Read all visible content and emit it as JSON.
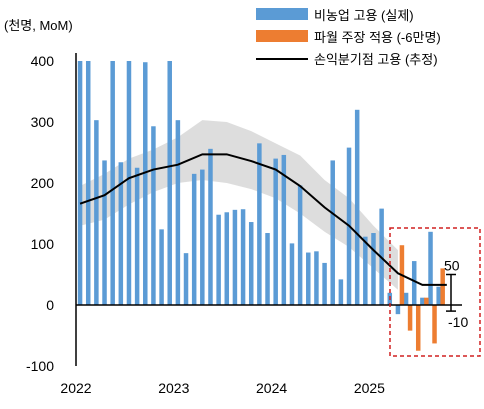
{
  "chart_data": {
    "type": "bar",
    "unit_label": "(천명, MoM)",
    "ylim": [
      -100,
      400
    ],
    "y_ticks": [
      "400",
      "300",
      "200",
      "100",
      "0",
      "-100"
    ],
    "x_ticks": [
      "2022",
      "2023",
      "2024",
      "2025"
    ],
    "series": [
      {
        "name": "비농업 고용 (실제)",
        "kind": "bar",
        "color": "#5B9BD5",
        "x": [
          "2022-01",
          "2022-02",
          "2022-03",
          "2022-04",
          "2022-05",
          "2022-06",
          "2022-07",
          "2022-08",
          "2022-09",
          "2022-10",
          "2022-11",
          "2022-12",
          "2023-01",
          "2023-02",
          "2023-03",
          "2023-04",
          "2023-05",
          "2023-06",
          "2023-07",
          "2023-08",
          "2023-09",
          "2023-10",
          "2023-11",
          "2023-12",
          "2024-01",
          "2024-02",
          "2024-03",
          "2024-04",
          "2024-05",
          "2024-06",
          "2024-07",
          "2024-08",
          "2024-09",
          "2024-10",
          "2024-11",
          "2024-12",
          "2025-01",
          "2025-02",
          "2025-03",
          "2025-04",
          "2025-05",
          "2025-06",
          "2025-07",
          "2025-08",
          "2025-09"
        ],
        "values": [
          400,
          400,
          303,
          237,
          400,
          234,
          400,
          225,
          398,
          293,
          124,
          400,
          303,
          85,
          215,
          222,
          256,
          148,
          152,
          156,
          157,
          136,
          265,
          118,
          240,
          246,
          101,
          196,
          86,
          88,
          69,
          237,
          42,
          258,
          320,
          112,
          118,
          158,
          20,
          -15,
          20,
          72,
          12,
          120,
          30
        ]
      },
      {
        "name": "파월 주장 적용 (-6만명)",
        "kind": "bar",
        "color": "#ED7D31",
        "x": [
          "2025-04",
          "2025-05",
          "2025-06",
          "2025-07",
          "2025-08",
          "2025-09"
        ],
        "values": [
          98,
          -42,
          -75,
          12,
          -63,
          60
        ]
      },
      {
        "name": "손익분기점 고용 (추정)",
        "kind": "line",
        "color": "#000000",
        "x": [
          "2022-01",
          "2022-04",
          "2022-07",
          "2022-10",
          "2023-01",
          "2023-04",
          "2023-07",
          "2023-10",
          "2024-01",
          "2024-04",
          "2024-07",
          "2024-10",
          "2025-01",
          "2025-04",
          "2025-07",
          "2025-10"
        ],
        "values": [
          166,
          180,
          208,
          222,
          230,
          247,
          247,
          236,
          222,
          195,
          160,
          130,
          90,
          52,
          33,
          33
        ]
      }
    ],
    "band": {
      "x": [
        "2022-01",
        "2022-04",
        "2022-07",
        "2022-10",
        "2023-01",
        "2023-04",
        "2023-07",
        "2023-10",
        "2024-01",
        "2024-04",
        "2024-07",
        "2024-10",
        "2025-01",
        "2025-04"
      ],
      "lower": [
        130,
        140,
        165,
        185,
        200,
        205,
        200,
        190,
        175,
        150,
        120,
        95,
        60,
        25
      ],
      "upper": [
        195,
        215,
        240,
        255,
        275,
        303,
        300,
        285,
        265,
        245,
        205,
        175,
        130,
        90
      ]
    },
    "annotations": [
      {
        "text": "50",
        "value": 50
      },
      {
        "text": "-10",
        "value": -10
      }
    ]
  }
}
